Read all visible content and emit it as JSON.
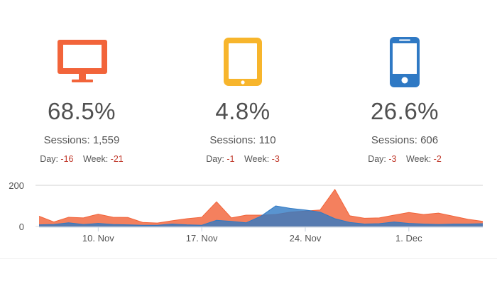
{
  "devices": [
    {
      "name": "desktop",
      "icon": "desktop-monitor-icon",
      "color": "#f2643a",
      "percent": "68.5%",
      "sessions_label": "Sessions:",
      "sessions": "1,559",
      "day_label": "Day:",
      "day": "-16",
      "week_label": "Week:",
      "week": "-21"
    },
    {
      "name": "tablet",
      "icon": "tablet-icon",
      "color": "#f7b52c",
      "percent": "4.8%",
      "sessions_label": "Sessions:",
      "sessions": "110",
      "day_label": "Day:",
      "day": "-1",
      "week_label": "Week:",
      "week": "-3"
    },
    {
      "name": "mobile",
      "icon": "mobile-phone-icon",
      "color": "#2f79c4",
      "percent": "26.6%",
      "sessions_label": "Sessions:",
      "sessions": "606",
      "day_label": "Day:",
      "day": "-3",
      "week_label": "Week:",
      "week": "-2"
    }
  ],
  "chart_data": {
    "type": "area",
    "ylim": [
      0,
      200
    ],
    "yticks": [
      0,
      200
    ],
    "xticks": [
      {
        "label": "10. Nov",
        "x": 4
      },
      {
        "label": "17. Nov",
        "x": 11
      },
      {
        "label": "24. Nov",
        "x": 18
      },
      {
        "label": "1. Dec",
        "x": 25
      }
    ],
    "x": [
      0,
      1,
      2,
      3,
      4,
      5,
      6,
      7,
      8,
      9,
      10,
      11,
      12,
      13,
      14,
      15,
      16,
      17,
      18,
      19,
      20,
      21,
      22,
      23,
      24,
      25,
      26,
      27,
      28,
      29,
      30
    ],
    "series": [
      {
        "color": "#f2643a",
        "values": [
          50,
          22,
          45,
          42,
          60,
          45,
          44,
          20,
          17,
          28,
          38,
          45,
          120,
          42,
          55,
          55,
          58,
          70,
          75,
          80,
          180,
          52,
          40,
          42,
          55,
          68,
          58,
          65,
          50,
          35,
          25
        ]
      },
      {
        "color": "#2f79c4",
        "values": [
          8,
          10,
          18,
          10,
          15,
          10,
          8,
          6,
          6,
          12,
          8,
          6,
          30,
          25,
          18,
          50,
          100,
          88,
          80,
          70,
          38,
          20,
          12,
          14,
          22,
          15,
          12,
          10,
          12,
          12,
          14
        ]
      }
    ]
  }
}
